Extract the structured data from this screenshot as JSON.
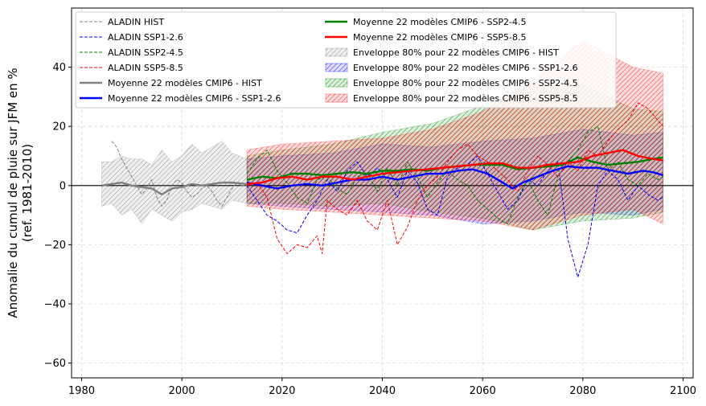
{
  "chart_data": {
    "type": "line",
    "xlim": [
      1978,
      2102
    ],
    "ylim": [
      -65,
      60
    ],
    "xticks": [
      1980,
      2000,
      2020,
      2040,
      2060,
      2080,
      2100
    ],
    "yticks": [
      -60,
      -40,
      -20,
      0,
      20,
      40
    ],
    "ylabel_lines": [
      "Anomalie du cumul de pluie sur JFM en %",
      "(ref. 1981-2010)"
    ],
    "grid": true,
    "zero_line": true,
    "legend_position": "upper-left, two columns",
    "envelopes": [
      {
        "name": "Enveloppe 80% pour 22 modèles CMIP6 -  HIST",
        "color": "#808080",
        "x": [
          1984,
          1986,
          1988,
          1990,
          1992,
          1994,
          1996,
          1998,
          2000,
          2002,
          2004,
          2006,
          2008,
          2010,
          2013
        ],
        "upper": [
          8,
          8,
          10,
          9,
          9,
          7,
          12,
          8,
          10,
          14,
          11,
          13,
          15,
          11,
          9
        ],
        "lower": [
          -7,
          -6,
          -10,
          -8,
          -13,
          -8,
          -10,
          -12,
          -9,
          -8,
          -6,
          -7,
          -8,
          -5,
          -6
        ]
      },
      {
        "name": "Enveloppe 80% pour 22 modèles CMIP6 -  SSP1-2.6",
        "color": "#0000ff",
        "x": [
          2013,
          2020,
          2030,
          2040,
          2050,
          2060,
          2070,
          2080,
          2090,
          2096
        ],
        "upper": [
          9,
          10,
          11,
          14,
          13,
          15,
          16,
          19,
          17,
          18
        ],
        "lower": [
          -6,
          -7,
          -8,
          -9,
          -10,
          -13,
          -12,
          -9,
          -10,
          -8
        ]
      },
      {
        "name": "Enveloppe 80% pour 22 modèles CMIP6 -  SSP2-4.5",
        "color": "#008000",
        "x": [
          2013,
          2020,
          2030,
          2040,
          2050,
          2060,
          2070,
          2080,
          2090,
          2096
        ],
        "upper": [
          10,
          12,
          14,
          18,
          21,
          27,
          32,
          34,
          26,
          25
        ],
        "lower": [
          -6,
          -6,
          -7,
          -6,
          -9,
          -11,
          -15,
          -12,
          -11,
          -9
        ]
      },
      {
        "name": "Enveloppe 80% pour 22 modèles CMIP6 -  SSP5-8.5",
        "color": "#ff0000",
        "x": [
          2013,
          2020,
          2030,
          2040,
          2050,
          2060,
          2070,
          2080,
          2090,
          2096
        ],
        "upper": [
          12,
          14,
          15,
          16,
          19,
          25,
          36,
          49,
          40,
          38
        ],
        "lower": [
          -7,
          -8,
          -9,
          -10,
          -11,
          -12,
          -15,
          -10,
          -8,
          -13
        ]
      }
    ],
    "aladin_series": [
      {
        "name": "ALADIN HIST",
        "color": "#808080",
        "x": [
          1986,
          1987,
          1988,
          1989,
          1990,
          1991,
          1992,
          1993,
          1994,
          1995,
          1996,
          1997,
          1998,
          1999,
          2000,
          2001,
          2002,
          2003,
          2004,
          2005,
          2006,
          2007,
          2008,
          2009,
          2010,
          2011,
          2012,
          2013
        ],
        "y": [
          15,
          13,
          9,
          6,
          3,
          0,
          -3,
          -1,
          2,
          -4,
          -7,
          -5,
          0,
          2,
          1,
          -2,
          -4,
          -3,
          -1,
          0,
          -2,
          -5,
          -7,
          -4,
          -1,
          1,
          0,
          0
        ]
      },
      {
        "name": "ALADIN SSP1-2.6",
        "color": "#0000ff",
        "x": [
          2013,
          2015,
          2017,
          2019,
          2021,
          2023,
          2025,
          2027,
          2029,
          2031,
          2033,
          2035,
          2037,
          2039,
          2041,
          2043,
          2045,
          2047,
          2049,
          2051,
          2053,
          2055,
          2057,
          2059,
          2061,
          2063,
          2065,
          2067,
          2069,
          2071,
          2073,
          2075,
          2077,
          2079,
          2081,
          2083,
          2085,
          2087,
          2089,
          2091,
          2093,
          2095,
          2096
        ],
        "y": [
          0,
          -5,
          -10,
          -12,
          -15,
          -16,
          -10,
          -5,
          2,
          -2,
          5,
          8,
          3,
          6,
          2,
          -4,
          5,
          1,
          -8,
          -10,
          3,
          6,
          7,
          10,
          4,
          -2,
          -8,
          -5,
          2,
          0,
          5,
          8,
          -18,
          -31,
          -20,
          0,
          5,
          2,
          -5,
          0,
          -3,
          -5,
          -4
        ]
      },
      {
        "name": "ALADIN SSP2-4.5",
        "color": "#008000",
        "x": [
          2013,
          2015,
          2017,
          2019,
          2021,
          2023,
          2025,
          2027,
          2029,
          2031,
          2033,
          2035,
          2037,
          2039,
          2041,
          2043,
          2045,
          2047,
          2049,
          2051,
          2053,
          2055,
          2057,
          2059,
          2061,
          2063,
          2065,
          2067,
          2069,
          2071,
          2073,
          2075,
          2077,
          2079,
          2081,
          2083,
          2085,
          2087,
          2089,
          2091,
          2093,
          2095,
          2096
        ],
        "y": [
          4,
          9,
          12,
          5,
          1,
          -4,
          -6,
          2,
          3,
          -1,
          -3,
          3,
          4,
          -2,
          6,
          0,
          8,
          3,
          -4,
          1,
          5,
          2,
          0,
          -5,
          -8,
          -11,
          -13,
          -4,
          2,
          -5,
          -10,
          3,
          8,
          12,
          18,
          20,
          5,
          8,
          2,
          0,
          4,
          2,
          3
        ]
      },
      {
        "name": "ALADIN SSP5-8.5",
        "color": "#ff0000",
        "x": [
          2013,
          2015,
          2017,
          2019,
          2021,
          2023,
          2025,
          2027,
          2028,
          2029,
          2031,
          2033,
          2035,
          2037,
          2039,
          2041,
          2043,
          2045,
          2047,
          2049,
          2051,
          2053,
          2055,
          2057,
          2059,
          2061,
          2063,
          2065,
          2067,
          2069,
          2071,
          2073,
          2075,
          2077,
          2079,
          2081,
          2083,
          2085,
          2087,
          2089,
          2091,
          2093,
          2095,
          2096
        ],
        "y": [
          0,
          1,
          -4,
          -18,
          -23,
          -20,
          -21,
          -17,
          -23,
          -5,
          -8,
          -10,
          -5,
          -12,
          -15,
          -5,
          -20,
          -14,
          -5,
          0,
          3,
          8,
          12,
          14,
          10,
          8,
          5,
          2,
          -2,
          5,
          10,
          7,
          3,
          8,
          5,
          12,
          10,
          15,
          19,
          22,
          28,
          26,
          22,
          20
        ]
      }
    ],
    "mean_series": [
      {
        "name": "Moyenne 22 modèles CMIP6 - HIST",
        "color": "#808080",
        "x": [
          1984,
          1986,
          1988,
          1990,
          1992,
          1994,
          1996,
          1998,
          2000,
          2002,
          2004,
          2006,
          2008,
          2010,
          2013
        ],
        "y": [
          0,
          0.5,
          1,
          0,
          -0.5,
          -1,
          -3,
          -1,
          -0.5,
          0.5,
          0,
          0.5,
          1,
          1,
          0.5
        ]
      },
      {
        "name": "Moyenne 22 modèles CMIP6 - SSP1-2.6",
        "color": "#0000ff",
        "x": [
          2013,
          2016,
          2019,
          2022,
          2025,
          2028,
          2031,
          2034,
          2037,
          2040,
          2043,
          2046,
          2049,
          2052,
          2055,
          2058,
          2061,
          2064,
          2066,
          2068,
          2071,
          2074,
          2077,
          2080,
          2083,
          2086,
          2089,
          2092,
          2094,
          2096
        ],
        "y": [
          1,
          0,
          -1,
          0,
          0.5,
          0,
          1,
          2,
          2,
          3,
          2,
          3,
          4,
          4,
          5,
          5.5,
          4,
          1,
          -1,
          1,
          3,
          5,
          6.5,
          6,
          6,
          5,
          4,
          5,
          4.5,
          3.5
        ]
      },
      {
        "name": "Moyenne 22 modèles CMIP6 - SSP2-4.5",
        "color": "#008000",
        "x": [
          2013,
          2016,
          2019,
          2022,
          2025,
          2028,
          2031,
          2034,
          2037,
          2040,
          2043,
          2046,
          2049,
          2052,
          2055,
          2058,
          2061,
          2064,
          2067,
          2070,
          2073,
          2076,
          2079,
          2082,
          2085,
          2088,
          2091,
          2094,
          2096
        ],
        "y": [
          2,
          3,
          2.5,
          4,
          4,
          3.5,
          4,
          4.5,
          4,
          5,
          5,
          5.5,
          5,
          6,
          6.5,
          7,
          7,
          7,
          5.5,
          6,
          6.5,
          7,
          9.5,
          8,
          7,
          7.5,
          8,
          9,
          9.5
        ]
      },
      {
        "name": "Moyenne 22 modèles CMIP6 - SSP5-8.5",
        "color": "#ff0000",
        "x": [
          2013,
          2016,
          2019,
          2022,
          2025,
          2028,
          2031,
          2034,
          2037,
          2040,
          2043,
          2046,
          2049,
          2052,
          2055,
          2058,
          2061,
          2064,
          2067,
          2070,
          2073,
          2076,
          2079,
          2082,
          2085,
          2088,
          2091,
          2094,
          2096
        ],
        "y": [
          0.5,
          1,
          2.5,
          3,
          2,
          3,
          3,
          2,
          3,
          4,
          4.5,
          5,
          5.5,
          6,
          6.5,
          7,
          7.5,
          7.5,
          6,
          6,
          7,
          7.5,
          8,
          10,
          11,
          12,
          10,
          9,
          8.5
        ]
      }
    ],
    "legend_columns": [
      [
        "ALADIN HIST",
        "ALADIN SSP1-2.6",
        "ALADIN SSP2-4.5",
        "ALADIN SSP5-8.5",
        "Moyenne 22 modèles CMIP6 - HIST",
        "Moyenne 22 modèles CMIP6 - SSP1-2.6"
      ],
      [
        "Moyenne 22 modèles CMIP6 - SSP2-4.5",
        "Moyenne 22 modèles CMIP6 - SSP5-8.5",
        "Enveloppe 80% pour 22 modèles CMIP6 -  HIST",
        "Enveloppe 80% pour 22 modèles CMIP6 -  SSP1-2.6",
        "Enveloppe 80% pour 22 modèles CMIP6 -  SSP2-4.5",
        "Enveloppe 80% pour 22 modèles CMIP6 -  SSP5-8.5"
      ]
    ]
  }
}
